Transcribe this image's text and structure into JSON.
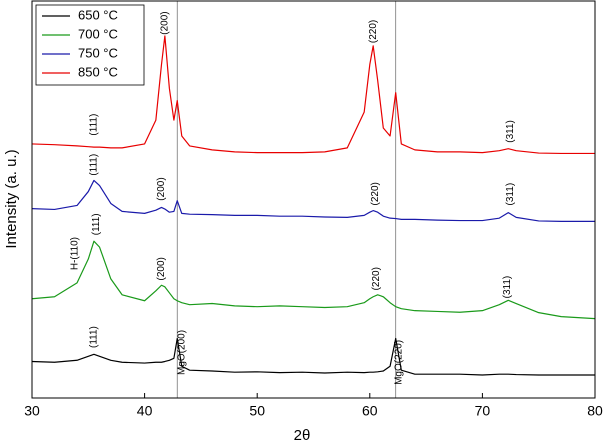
{
  "chart_data": {
    "type": "line",
    "xlabel": "2θ",
    "ylabel": "Intensity (a. u.)",
    "x": [
      30,
      32,
      34,
      35,
      35.5,
      36,
      37,
      38,
      40,
      41,
      41.5,
      41.8,
      42.2,
      42.6,
      42.9,
      43.3,
      44,
      46,
      48,
      50,
      52,
      54,
      56,
      58,
      59.5,
      60,
      60.3,
      60.7,
      61.2,
      61.8,
      62.3,
      62.8,
      64,
      66,
      68,
      70,
      71.5,
      72.3,
      73,
      75,
      77,
      80
    ],
    "series": [
      {
        "name": "650 °C",
        "color": "#000000",
        "values": [
          9.2,
          9.0,
          9.5,
          10.5,
          11,
          10.5,
          9.5,
          9,
          8.8,
          9,
          9,
          9.2,
          9.5,
          10,
          15,
          8,
          7,
          6.8,
          6.5,
          6.6,
          6.4,
          6.5,
          6.3,
          6.5,
          6.4,
          6.5,
          6.5,
          6.6,
          6.8,
          8,
          15,
          7,
          6,
          6,
          6,
          5.8,
          6,
          6,
          5.9,
          5.8,
          5.8,
          5.8
        ]
      },
      {
        "name": "700 °C",
        "color": "#1a9a1a",
        "values": [
          25,
          25.5,
          29,
          35,
          39.5,
          38,
          30,
          26,
          24.5,
          27,
          28.4,
          28,
          26.5,
          25,
          24.5,
          24,
          23.5,
          23.8,
          23.2,
          23,
          23.2,
          23,
          22.8,
          23,
          24,
          25,
          25.5,
          26,
          25.5,
          24,
          23,
          22.5,
          22,
          21.8,
          21.6,
          22,
          23.5,
          24.6,
          23.8,
          21.5,
          20.5,
          20
        ]
      },
      {
        "name": "750 °C",
        "color": "#1a1aaa",
        "values": [
          47.7,
          47.5,
          48.5,
          52,
          54.8,
          53.5,
          49,
          47,
          46.5,
          47.3,
          48,
          47.6,
          46.8,
          47,
          49.7,
          46.5,
          46.3,
          46.2,
          46,
          46,
          45.8,
          45.8,
          45.6,
          45.5,
          46,
          46.8,
          47.2,
          46.8,
          45.8,
          45.3,
          45.2,
          45,
          45,
          44.8,
          44.7,
          44.7,
          45.3,
          46.7,
          45.5,
          44.6,
          44.5,
          44.5
        ]
      },
      {
        "name": "850 °C",
        "color": "#e80000",
        "values": [
          64,
          63.8,
          63.5,
          63.3,
          63.2,
          63.2,
          63,
          63,
          64,
          70,
          84,
          91.2,
          78,
          70,
          74.9,
          66,
          63.5,
          62.5,
          62,
          61.8,
          61.8,
          61.8,
          62,
          63,
          72,
          84,
          88.7,
          80,
          68,
          66,
          76.9,
          64,
          62.5,
          62,
          62,
          61.8,
          62.3,
          62.8,
          62.3,
          61.7,
          61.6,
          61.6
        ]
      }
    ],
    "xlim": [
      30,
      80
    ],
    "xticks": [
      30,
      40,
      50,
      60,
      70,
      80
    ],
    "ylim": [
      0,
      100
    ],
    "vlines": [
      42.9,
      62.3
    ],
    "legend": "top-left",
    "annotations": [
      {
        "text": "(200)",
        "x": 41.8,
        "y": 91.5
      },
      {
        "text": "(220)",
        "x": 60.3,
        "y": 89.4
      },
      {
        "text": "(111)",
        "x": 35.5,
        "y": 66.1
      },
      {
        "text": "(311)",
        "x": 72.5,
        "y": 64.3
      },
      {
        "text": "(111)",
        "x": 35.5,
        "y": 56
      },
      {
        "text": "(200)",
        "x": 41.5,
        "y": 49.7
      },
      {
        "text": "(220)",
        "x": 60.5,
        "y": 48.5
      },
      {
        "text": "(311)",
        "x": 72.5,
        "y": 48.5
      },
      {
        "text": "H-(110)",
        "x": 33.8,
        "y": 32.2
      },
      {
        "text": "(111)",
        "x": 35.7,
        "y": 41
      },
      {
        "text": "(200)",
        "x": 41.5,
        "y": 29.6
      },
      {
        "text": "(220)",
        "x": 60.6,
        "y": 27.1
      },
      {
        "text": "(311)",
        "x": 72.2,
        "y": 25.1
      },
      {
        "text": "(111)",
        "x": 35.5,
        "y": 12.6
      },
      {
        "text": "MgO(200)",
        "x": 43.3,
        "y": 5.8
      },
      {
        "text": "MgO(220)",
        "x": 62.6,
        "y": 3.3
      }
    ]
  }
}
